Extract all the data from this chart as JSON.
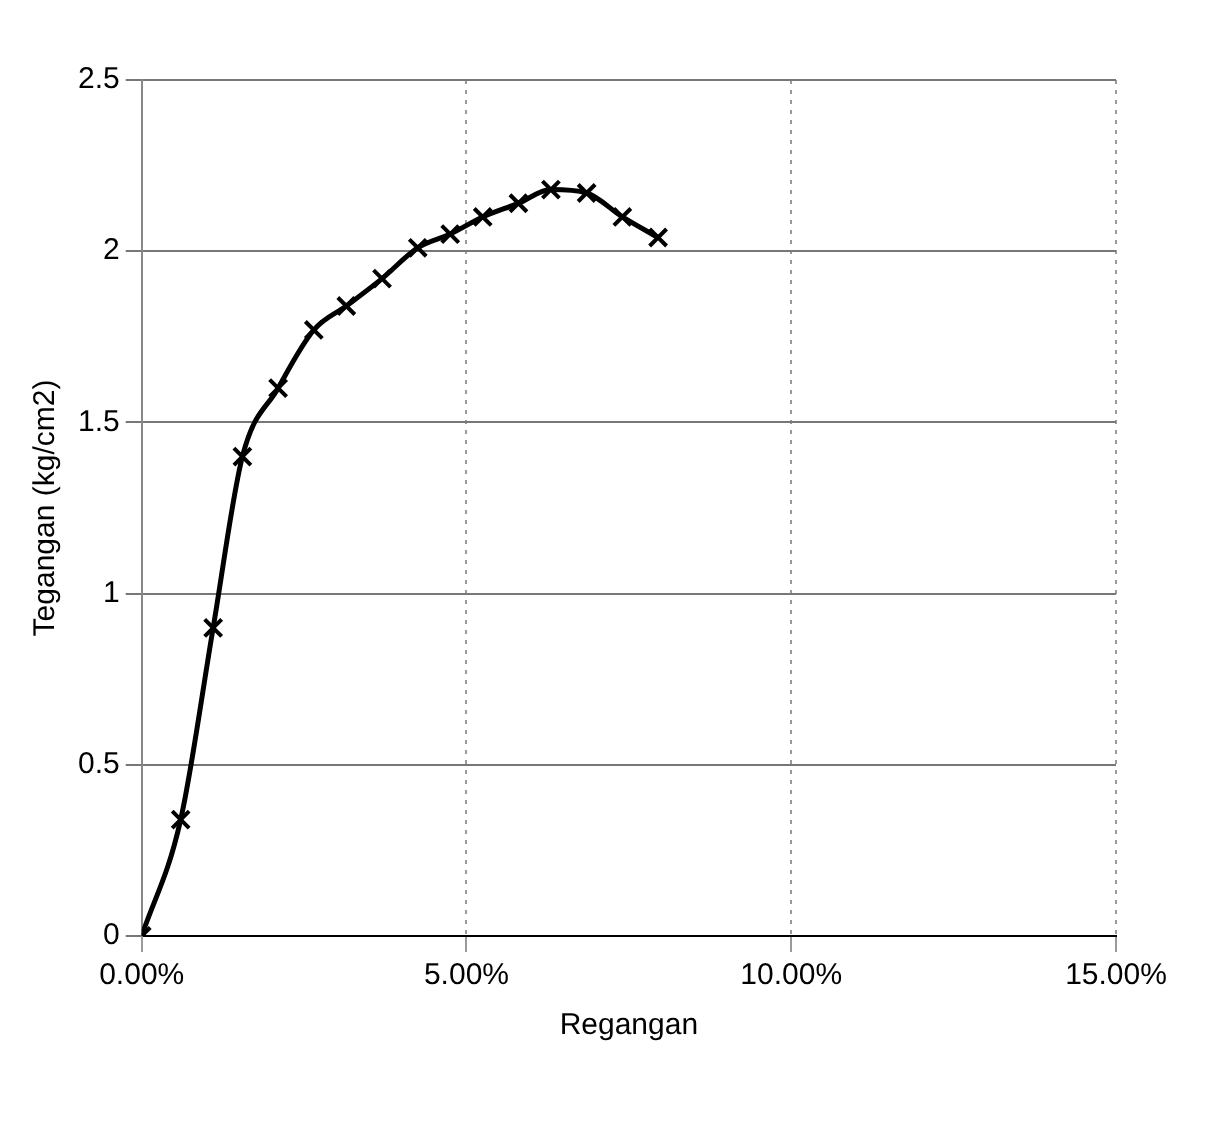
{
  "chart_data": {
    "type": "line",
    "xlabel": "Regangan",
    "ylabel": "Tegangan (kg/cm2)",
    "x": [
      0,
      0.6,
      1.1,
      1.55,
      2.1,
      2.65,
      3.15,
      3.7,
      4.25,
      4.75,
      5.25,
      5.8,
      6.3,
      6.85,
      7.4,
      7.95
    ],
    "series": [
      {
        "color": "#000000",
        "values": [
          0,
          0.34,
          0.9,
          1.4,
          1.6,
          1.77,
          1.84,
          1.92,
          2.01,
          2.05,
          2.1,
          2.14,
          2.18,
          2.17,
          2.1,
          2.04
        ]
      }
    ],
    "xlim": [
      0,
      15
    ],
    "xticks": [
      {
        "value": 0,
        "label": "0.00%"
      },
      {
        "value": 5,
        "label": "5.00%"
      },
      {
        "value": 10,
        "label": "10.00%"
      },
      {
        "value": 15,
        "label": "15.00%"
      }
    ],
    "ylim": [
      0,
      2.5
    ],
    "yticks": [
      0,
      0.5,
      1,
      1.5,
      2,
      2.5
    ],
    "grid": true,
    "legend": false,
    "marker": "cross",
    "line_style": "solid"
  }
}
